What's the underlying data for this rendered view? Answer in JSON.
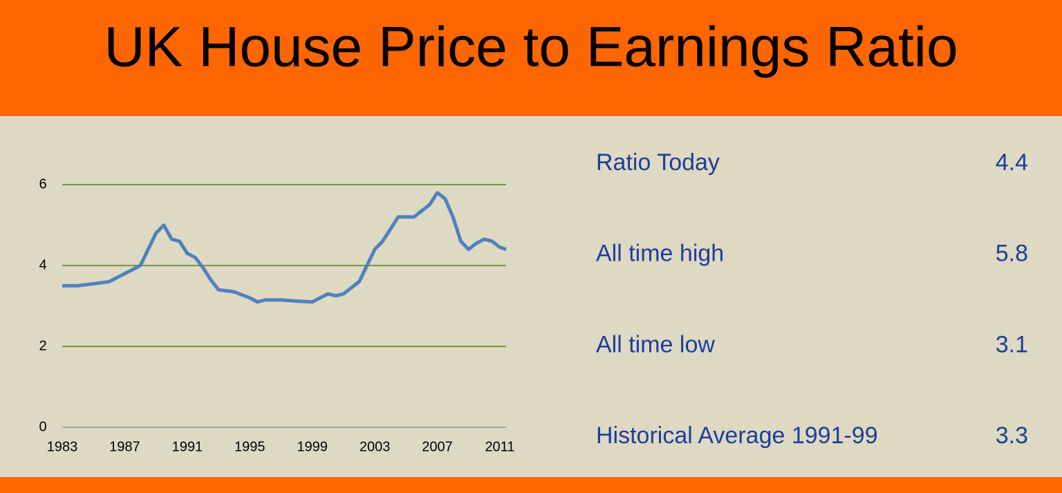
{
  "title": "UK House Price to Earnings Ratio",
  "chart_data": {
    "type": "line",
    "x": [
      1983,
      1984,
      1985,
      1986,
      1987,
      1987.5,
      1988,
      1988.5,
      1989,
      1989.5,
      1990,
      1990.5,
      1991,
      1991.5,
      1992,
      1992.5,
      1993,
      1994,
      1995,
      1995.5,
      1996,
      1997,
      1998,
      1999,
      2000,
      2000.5,
      2001,
      2002,
      2002.5,
      2003,
      2003.5,
      2004,
      2004.5,
      2005,
      2005.5,
      2006,
      2006.5,
      2007,
      2007.5,
      2008,
      2008.5,
      2009,
      2009.5,
      2010,
      2010.5,
      2011,
      2011.4
    ],
    "series": [
      {
        "color": "#4f81bd",
        "values": [
          3.5,
          3.5,
          3.55,
          3.6,
          3.8,
          3.9,
          4.0,
          4.4,
          4.8,
          5.0,
          4.65,
          4.6,
          4.3,
          4.2,
          3.95,
          3.65,
          3.4,
          3.35,
          3.2,
          3.1,
          3.15,
          3.15,
          3.12,
          3.1,
          3.3,
          3.25,
          3.3,
          3.6,
          4.0,
          4.4,
          4.6,
          4.9,
          5.2,
          5.2,
          5.2,
          5.35,
          5.5,
          5.8,
          5.65,
          5.2,
          4.6,
          4.4,
          4.55,
          4.65,
          4.6,
          4.45,
          4.4
        ]
      }
    ],
    "xlim": [
      1983,
      2011.4
    ],
    "xticks": [
      1983,
      1987,
      1991,
      1995,
      1999,
      2003,
      2007,
      2011
    ],
    "ylim": [
      0,
      6
    ],
    "yticks": [
      0,
      2,
      4,
      6
    ],
    "grid": true,
    "grid_color": "#77933c"
  },
  "summary": [
    {
      "label": "Ratio Today",
      "value": 4.4
    },
    {
      "label": "All time high",
      "value": 5.8
    },
    {
      "label": "All time low",
      "value": 3.1
    },
    {
      "label": "Historical Average 1991-99",
      "value": 3.3
    }
  ]
}
